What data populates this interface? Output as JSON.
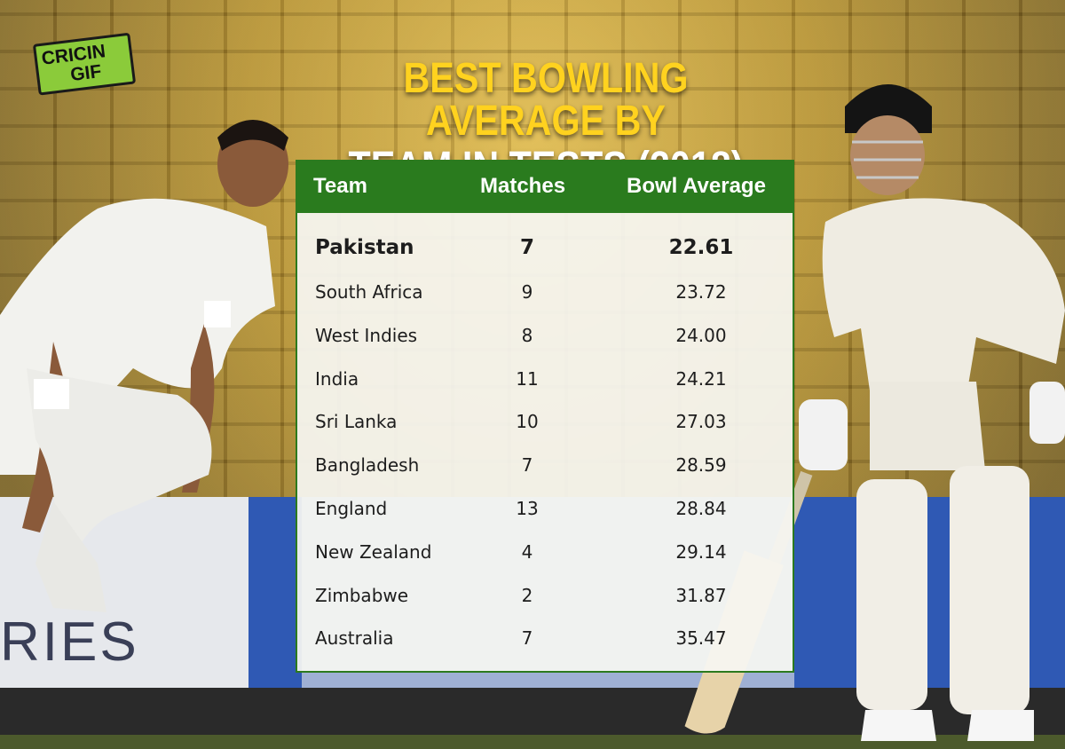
{
  "brand": {
    "line1": "CRICIN",
    "line2": "GIF"
  },
  "title": {
    "line1": "BEST BOWLING AVERAGE BY",
    "line2": "TEAM IN TESTS (2018)"
  },
  "background": {
    "board_text": "RIES"
  },
  "table": {
    "headers": {
      "team": "Team",
      "matches": "Matches",
      "average": "Bowl Average"
    },
    "rows": [
      {
        "team": "Pakistan",
        "matches": "7",
        "average": "22.61"
      },
      {
        "team": "South Africa",
        "matches": "9",
        "average": "23.72"
      },
      {
        "team": "West Indies",
        "matches": "8",
        "average": "24.00"
      },
      {
        "team": "India",
        "matches": "11",
        "average": "24.21"
      },
      {
        "team": "Sri Lanka",
        "matches": "10",
        "average": "27.03"
      },
      {
        "team": "Bangladesh",
        "matches": "7",
        "average": "28.59"
      },
      {
        "team": "England",
        "matches": "13",
        "average": "28.84"
      },
      {
        "team": "New Zealand",
        "matches": "4",
        "average": "29.14"
      },
      {
        "team": "Zimbabwe",
        "matches": "2",
        "average": "31.87"
      },
      {
        "team": "Australia",
        "matches": "7",
        "average": "35.47"
      }
    ]
  },
  "chart_data": {
    "type": "table",
    "title": "BEST BOWLING AVERAGE BY TEAM IN TESTS (2018)",
    "columns": [
      "Team",
      "Matches",
      "Bowl Average"
    ],
    "categories": [
      "Pakistan",
      "South Africa",
      "West Indies",
      "India",
      "Sri Lanka",
      "Bangladesh",
      "England",
      "New Zealand",
      "Zimbabwe",
      "Australia"
    ],
    "series": [
      {
        "name": "Matches",
        "values": [
          7,
          9,
          8,
          11,
          10,
          7,
          13,
          4,
          2,
          7
        ]
      },
      {
        "name": "Bowl Average",
        "values": [
          22.61,
          23.72,
          24.0,
          24.21,
          27.03,
          28.59,
          28.84,
          29.14,
          31.87,
          35.47
        ]
      }
    ]
  },
  "colors": {
    "header_green": "#2a7b1e",
    "title_yellow": "#ffd21f",
    "title_white": "#ffffff",
    "logo_green": "#8bcb3a"
  }
}
